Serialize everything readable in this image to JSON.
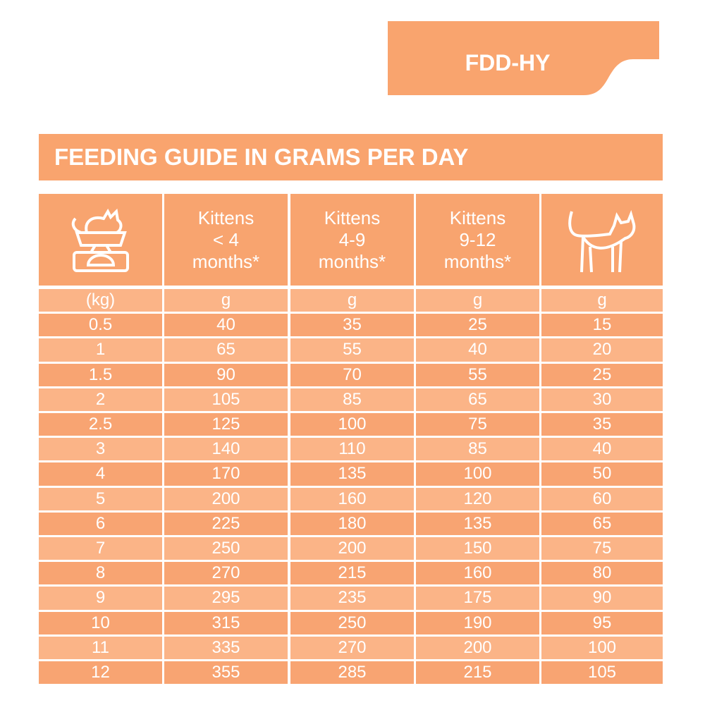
{
  "badge": "FDD-HY",
  "title": "FEEDING GUIDE IN GRAMS PER DAY",
  "table": {
    "headers": [
      "Kittens\n< 4\nmonths*",
      "Kittens\n4-9\nmonths*",
      "Kittens\n9-12\nmonths*"
    ],
    "units": [
      "(kg)",
      "g",
      "g",
      "g",
      "g"
    ],
    "rows": [
      [
        0.5,
        40,
        35,
        25,
        15
      ],
      [
        1,
        65,
        55,
        40,
        20
      ],
      [
        1.5,
        90,
        70,
        55,
        25
      ],
      [
        2,
        105,
        85,
        65,
        30
      ],
      [
        2.5,
        125,
        100,
        75,
        35
      ],
      [
        3,
        140,
        110,
        85,
        40
      ],
      [
        4,
        170,
        135,
        100,
        50
      ],
      [
        5,
        200,
        160,
        120,
        60
      ],
      [
        6,
        225,
        180,
        135,
        65
      ],
      [
        7,
        250,
        200,
        150,
        75
      ],
      [
        8,
        270,
        215,
        160,
        80
      ],
      [
        9,
        295,
        235,
        175,
        90
      ],
      [
        10,
        315,
        250,
        190,
        95
      ],
      [
        11,
        335,
        270,
        200,
        100
      ],
      [
        12,
        355,
        285,
        215,
        105
      ]
    ]
  }
}
